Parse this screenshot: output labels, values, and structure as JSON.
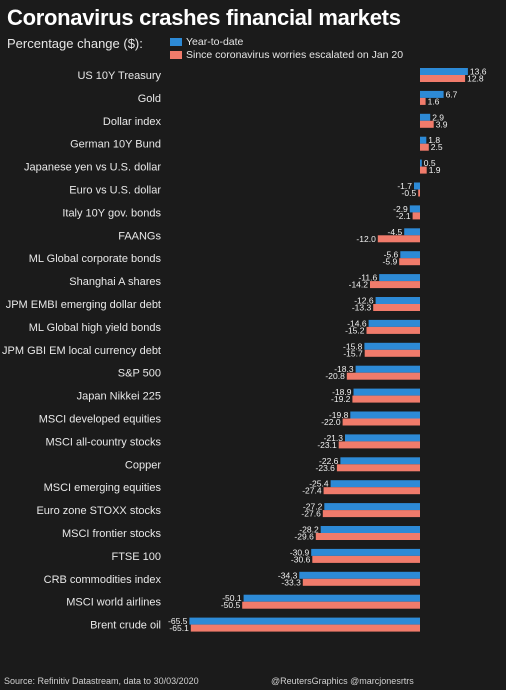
{
  "title": "Coronavirus crashes financial markets",
  "subtitle": "Percentage change ($):",
  "colors": {
    "ytd": "#2d8ad6",
    "since": "#f07b6b",
    "background": "#1b1b1b"
  },
  "legend": {
    "ytd_label": "Year-to-date",
    "since_label": "Since coronavirus worries escalated on Jan 20"
  },
  "footer": {
    "source": "Source: Refinitiv Datastream, data to 30/03/2020",
    "credit": "@ReutersGraphics @marcjonesrtrs"
  },
  "chart_data": {
    "type": "bar",
    "orientation": "horizontal",
    "categories": [
      "US 10Y Treasury",
      "Gold",
      "Dollar index",
      "German 10Y Bund",
      "Japanese yen vs U.S. dollar",
      "Euro vs U.S. dollar",
      "Italy 10Y gov. bonds",
      "FAANGs",
      "ML Global corporate bonds",
      "Shanghai A shares",
      "JPM EMBI emerging dollar debt",
      "ML Global high yield bonds",
      "JPM GBI EM local currency debt",
      "S&P 500",
      "Japan Nikkei 225",
      "MSCI developed equities",
      "MSCI all-country stocks",
      "Copper",
      "MSCI emerging equities",
      "Euro zone STOXX stocks",
      "MSCI frontier stocks",
      "FTSE 100",
      "CRB commodities index",
      "MSCI world airlines",
      "Brent crude oil"
    ],
    "series": [
      {
        "name": "Year-to-date",
        "values": [
          13.6,
          6.7,
          2.9,
          1.8,
          0.5,
          -1.7,
          -2.9,
          -4.5,
          -5.6,
          -11.6,
          -12.6,
          -14.6,
          -15.8,
          -18.3,
          -18.9,
          -19.8,
          -21.3,
          -22.6,
          -25.4,
          -27.2,
          -28.2,
          -30.9,
          -34.3,
          -50.1,
          -65.5
        ]
      },
      {
        "name": "Since coronavirus worries escalated on Jan 20",
        "values": [
          12.8,
          1.6,
          3.9,
          2.5,
          1.9,
          -0.5,
          -2.1,
          -12.0,
          -5.9,
          -14.2,
          -13.3,
          -15.2,
          -15.7,
          -20.8,
          -19.2,
          -22.0,
          -23.1,
          -23.6,
          -27.4,
          -27.6,
          -29.6,
          -30.6,
          -33.3,
          -50.5,
          -65.1
        ]
      }
    ],
    "value_labels": [
      [
        "13.6",
        "12.8"
      ],
      [
        "6.7",
        "1.6"
      ],
      [
        "2.9",
        "3.9"
      ],
      [
        "1.8",
        "2.5"
      ],
      [
        "0.5",
        "1.9"
      ],
      [
        "-1.7",
        "-0.5"
      ],
      [
        "-2.9",
        "-2.1"
      ],
      [
        "-4.5",
        "-12.0"
      ],
      [
        "-5.6",
        "-5.9"
      ],
      [
        "-11.6",
        "-14.2"
      ],
      [
        "-12.6",
        "-13.3"
      ],
      [
        "-14.6",
        "-15.2"
      ],
      [
        "-15.8",
        "-15.7"
      ],
      [
        "-18.3",
        "-20.8"
      ],
      [
        "-18.9",
        "-19.2"
      ],
      [
        "-19.8",
        "-22.0"
      ],
      [
        "-21.3",
        "-23.1"
      ],
      [
        "-22.6",
        "-23.6"
      ],
      [
        "-25.4",
        "-27.4"
      ],
      [
        "-27.2",
        "-27.6"
      ],
      [
        "-28.2",
        "-29.6"
      ],
      [
        "-30.9",
        "-30.6"
      ],
      [
        "-34.3",
        "-33.3"
      ],
      [
        "-50.1",
        "-50.5"
      ],
      [
        "-65.5",
        "-65.1"
      ]
    ],
    "xlim": [
      -66,
      17
    ],
    "grid": false,
    "legend_position": "top"
  }
}
